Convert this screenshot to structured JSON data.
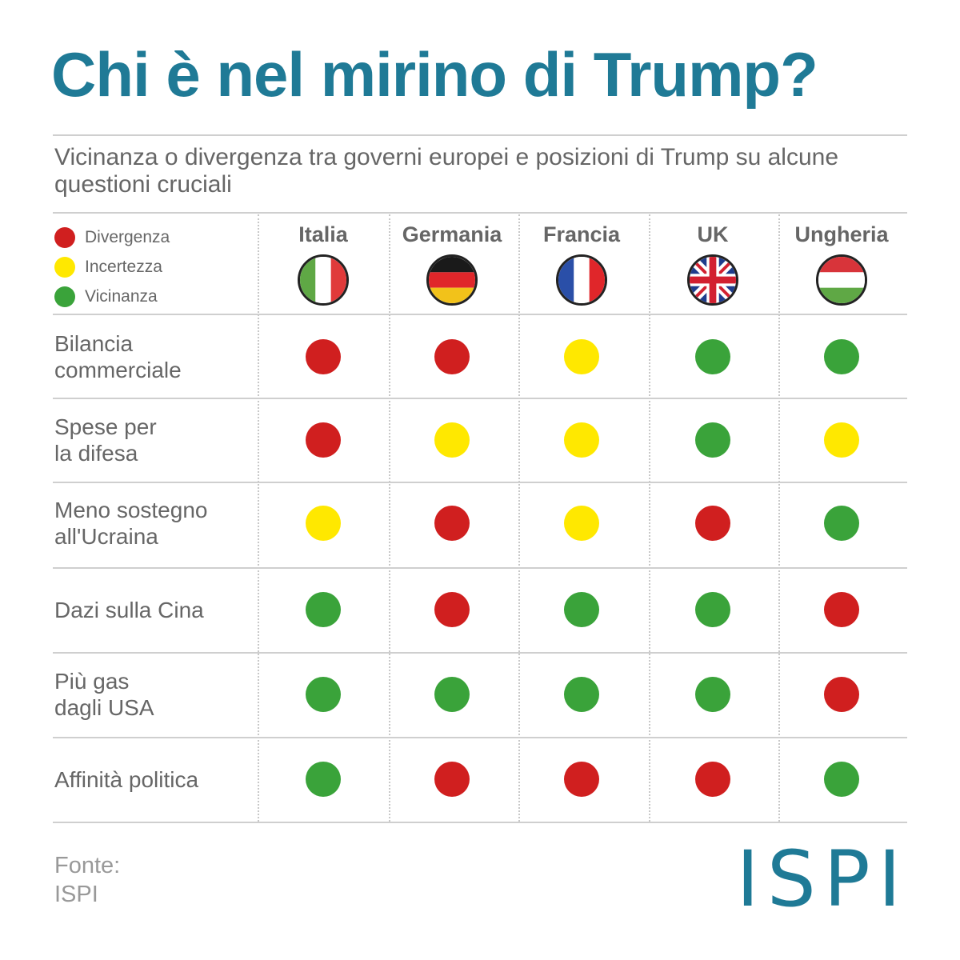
{
  "title": "Chi è nel mirino di Trump?",
  "subtitle": "Vicinanza o divergenza tra governi europei e posizioni di Trump su alcune questioni cruciali",
  "legend": [
    {
      "key": "divergenza",
      "label": "Divergenza",
      "color": "#d01f1f"
    },
    {
      "key": "incertezza",
      "label": "Incertezza",
      "color": "#ffe800"
    },
    {
      "key": "vicinanza",
      "label": "Vicinanza",
      "color": "#3aa33a"
    }
  ],
  "chart_data": {
    "type": "table",
    "columns": [
      "Italia",
      "Germania",
      "Francia",
      "UK",
      "Ungheria"
    ],
    "rows": [
      {
        "label": "Bilancia\ncommerciale",
        "values": [
          "divergenza",
          "divergenza",
          "incertezza",
          "vicinanza",
          "vicinanza"
        ]
      },
      {
        "label": "Spese per\nla difesa",
        "values": [
          "divergenza",
          "incertezza",
          "incertezza",
          "vicinanza",
          "incertezza"
        ]
      },
      {
        "label": "Meno sostegno\nall'Ucraina",
        "values": [
          "incertezza",
          "divergenza",
          "incertezza",
          "divergenza",
          "vicinanza"
        ]
      },
      {
        "label": "Dazi sulla Cina",
        "values": [
          "vicinanza",
          "divergenza",
          "vicinanza",
          "vicinanza",
          "divergenza"
        ]
      },
      {
        "label": "Più gas\ndagli USA",
        "values": [
          "vicinanza",
          "vicinanza",
          "vicinanza",
          "vicinanza",
          "divergenza"
        ]
      },
      {
        "label": "Affinità politica",
        "values": [
          "vicinanza",
          "divergenza",
          "divergenza",
          "divergenza",
          "vicinanza"
        ]
      }
    ]
  },
  "flags": [
    "italy-flag-icon",
    "germany-flag-icon",
    "france-flag-icon",
    "uk-flag-icon",
    "hungary-flag-icon"
  ],
  "source": {
    "label": "Fonte:",
    "value": "ISPI"
  },
  "logo": "ISPI"
}
